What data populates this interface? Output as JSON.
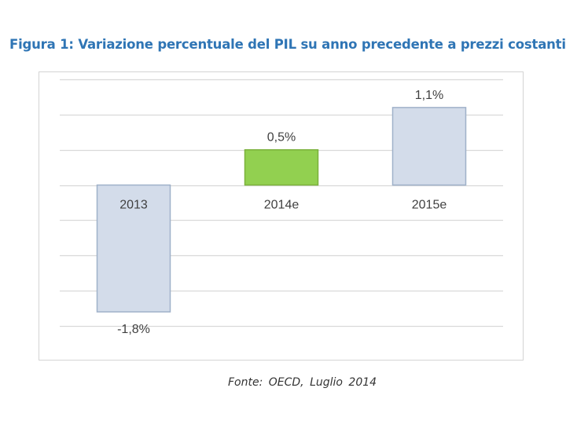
{
  "title": "Figura 1: Variazione percentuale del PIL su anno precedente a prezzi costanti",
  "source": "Fonte:  OECD,  Luglio  2014",
  "colors": {
    "title": "#2f75b5",
    "bar_default": "#d3dcea",
    "bar_border": "#9fb1c9",
    "bar_highlight": "#92d050",
    "bar_highlight_border": "#7bb13c"
  },
  "chart_data": {
    "type": "bar",
    "categories": [
      "2013",
      "2014e",
      "2015e"
    ],
    "values": [
      -1.8,
      0.5,
      1.1
    ],
    "value_labels": [
      "-1,8%",
      "0,5%",
      "1,1%"
    ],
    "highlight_index": 1,
    "ylim": [
      -2.0,
      1.5
    ],
    "grid": true,
    "legend": "none"
  }
}
